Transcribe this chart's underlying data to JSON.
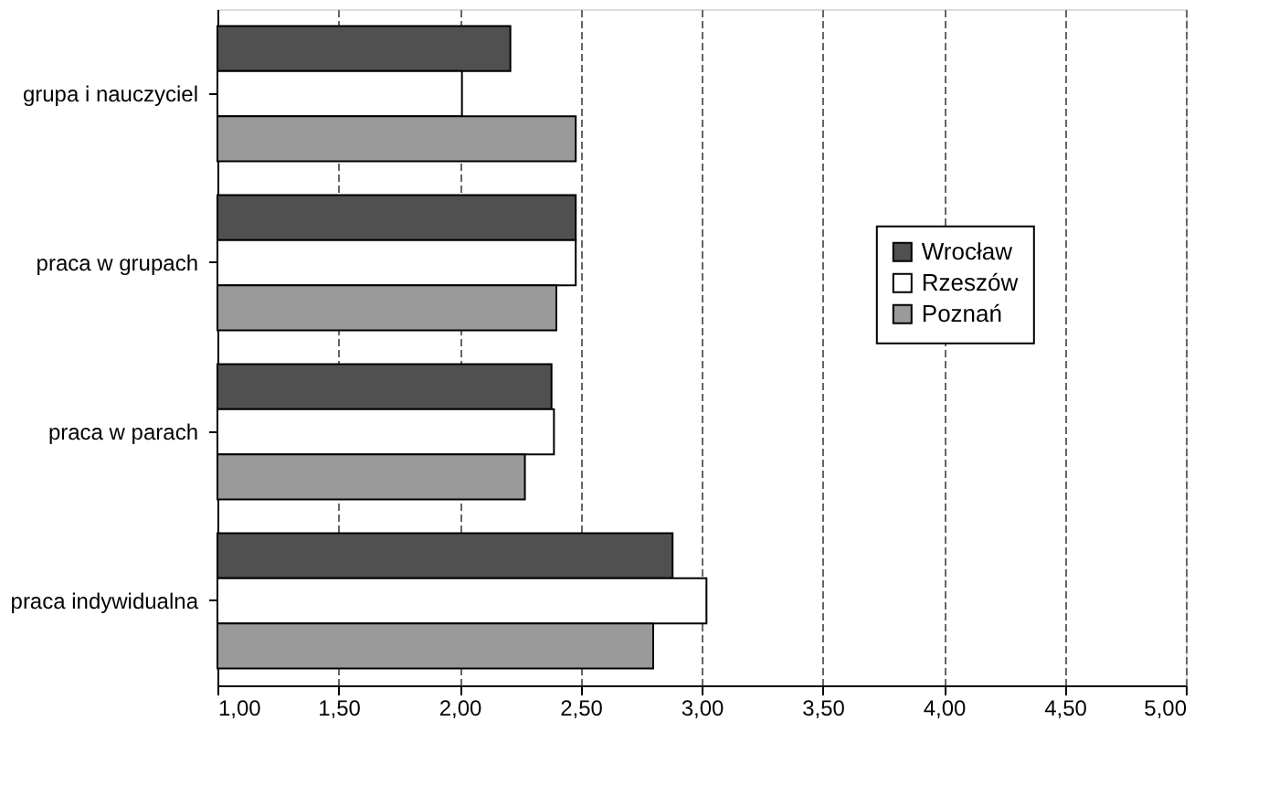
{
  "chart_data": {
    "type": "bar",
    "orientation": "horizontal",
    "categories": [
      "grupa i nauczyciel",
      "praca w grupach",
      "praca w parach",
      "praca indywidualna"
    ],
    "series": [
      {
        "name": "Wrocław",
        "color": "#505050",
        "values": [
          2.21,
          2.48,
          2.38,
          2.88
        ]
      },
      {
        "name": "Rzeszów",
        "color": "#ffffff",
        "values": [
          2.01,
          2.48,
          2.39,
          3.02
        ]
      },
      {
        "name": "Poznań",
        "color": "#9a9a9a",
        "values": [
          2.48,
          2.4,
          2.27,
          2.8
        ]
      }
    ],
    "xlim": [
      1,
      5
    ],
    "xticks": [
      {
        "value": 1,
        "label": "1,00"
      },
      {
        "value": 1.5,
        "label": "1,50"
      },
      {
        "value": 2,
        "label": "2,00"
      },
      {
        "value": 2.5,
        "label": "2,50"
      },
      {
        "value": 3,
        "label": "3,00"
      },
      {
        "value": 3.5,
        "label": "3,50"
      },
      {
        "value": 4,
        "label": "4,00"
      },
      {
        "value": 4.5,
        "label": "4,50"
      },
      {
        "value": 5,
        "label": "5,00"
      }
    ],
    "grid": "x",
    "legend": "right"
  }
}
